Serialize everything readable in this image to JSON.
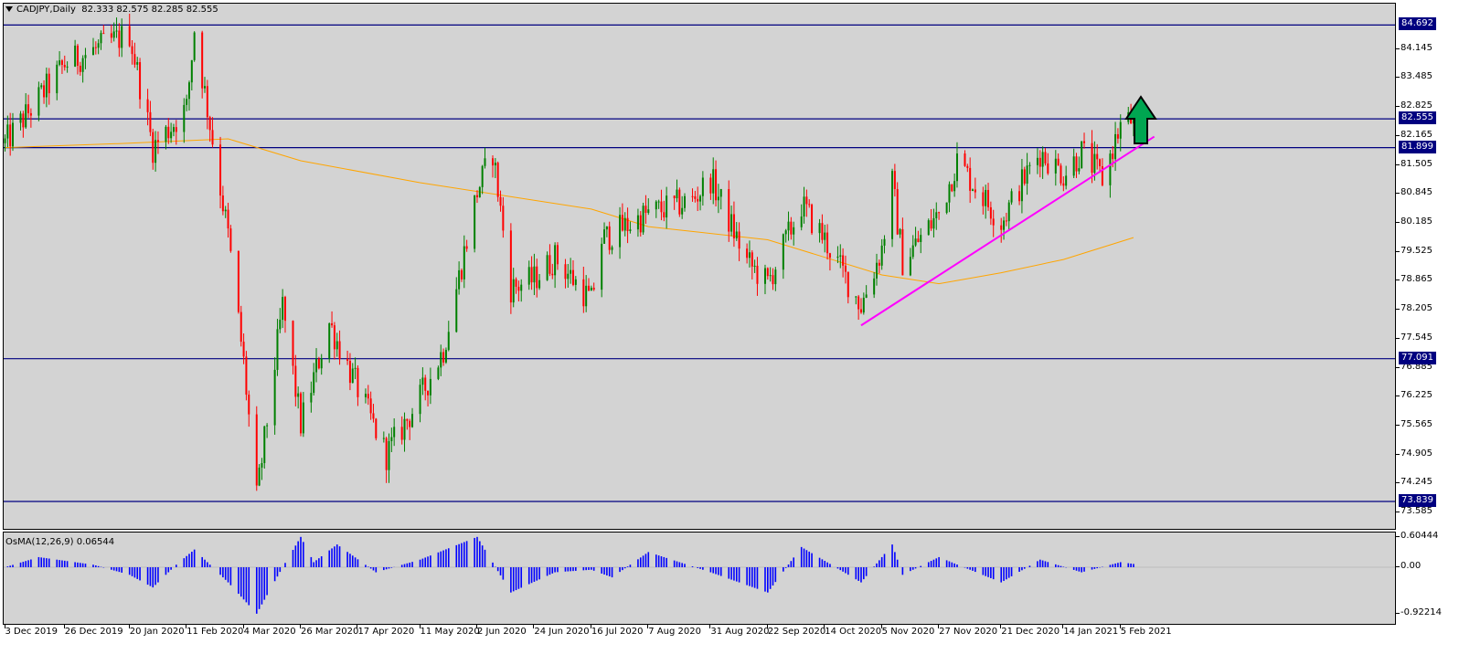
{
  "header": {
    "symbol": "CADJPY",
    "timeframe": "Daily",
    "ohlc": "82.333 82.575 82.285 82.555"
  },
  "oscillator": {
    "name": "OsMA(12,26,9)",
    "value": "0.06544",
    "axis_labels": [
      "0.60444",
      "0.00",
      "-0.92214"
    ],
    "color": "#0000ff"
  },
  "price_axis": {
    "labels": [
      "84.145",
      "83.485",
      "82.825",
      "82.165",
      "81.505",
      "80.845",
      "80.185",
      "79.525",
      "78.865",
      "78.205",
      "77.545",
      "76.885",
      "76.225",
      "75.565",
      "74.905",
      "74.245",
      "73.585"
    ],
    "levels": [
      "84.692",
      "82.555",
      "81.899",
      "77.091",
      "73.839"
    ]
  },
  "time_axis": {
    "labels": [
      "3 Dec 2019",
      "26 Dec 2019",
      "20 Jan 2020",
      "11 Feb 2020",
      "4 Mar 2020",
      "26 Mar 2020",
      "17 Apr 2020",
      "11 May 2020",
      "2 Jun 2020",
      "24 Jun 2020",
      "16 Jul 2020",
      "7 Aug 2020",
      "31 Aug 2020",
      "22 Sep 2020",
      "14 Oct 2020",
      "5 Nov 2020",
      "27 Nov 2020",
      "21 Dec 2020",
      "14 Jan 2021",
      "5 Feb 2021"
    ]
  },
  "colors": {
    "background": "#d3d3d3",
    "bull_candle": "#008000",
    "bear_candle": "#ff0000",
    "level_line": "#000080",
    "moving_average": "#ffa500",
    "trendline": "#ff00ff",
    "up_arrow": "#00a651"
  },
  "icons": {
    "menu": "triangle-down-icon",
    "signal": "up-arrow-icon"
  },
  "chart_data": {
    "type": "candlestick",
    "symbol": "CADJPY",
    "timeframe": "Daily",
    "ylim": [
      73.585,
      84.75
    ],
    "horizontal_levels": [
      84.692,
      82.555,
      81.899,
      77.091,
      73.839
    ],
    "close_path": [
      {
        "date": "3 Dec 2019",
        "close": 82.0
      },
      {
        "date": "26 Dec 2019",
        "close": 83.8
      },
      {
        "date": "20 Jan 2020",
        "close": 84.5
      },
      {
        "date": "29 Jan 2020",
        "close": 81.9
      },
      {
        "date": "11 Feb 2020",
        "close": 82.8
      },
      {
        "date": "14 Feb 2020",
        "close": 84.6
      },
      {
        "date": "27 Feb 2020",
        "close": 79.9
      },
      {
        "date": "4 Mar 2020",
        "close": 77.0
      },
      {
        "date": "9 Mar 2020",
        "close": 73.9
      },
      {
        "date": "19 Mar 2020",
        "close": 78.3
      },
      {
        "date": "26 Mar 2020",
        "close": 75.6
      },
      {
        "date": "6 Apr 2020",
        "close": 77.9
      },
      {
        "date": "17 Apr 2020",
        "close": 76.4
      },
      {
        "date": "28 Apr 2020",
        "close": 74.9
      },
      {
        "date": "11 May 2020",
        "close": 76.2
      },
      {
        "date": "20 May 2020",
        "close": 77.3
      },
      {
        "date": "2 Jun 2020",
        "close": 80.9
      },
      {
        "date": "8 Jun 2020",
        "close": 81.8
      },
      {
        "date": "15 Jun 2020",
        "close": 78.7
      },
      {
        "date": "24 Jun 2020",
        "close": 78.9
      },
      {
        "date": "2 Jul 2020",
        "close": 79.4
      },
      {
        "date": "16 Jul 2020",
        "close": 78.4
      },
      {
        "date": "20 Jul 2020",
        "close": 79.8
      },
      {
        "date": "7 Aug 2020",
        "close": 80.4
      },
      {
        "date": "24 Aug 2020",
        "close": 80.7
      },
      {
        "date": "31 Aug 2020",
        "close": 81.2
      },
      {
        "date": "14 Sep 2020",
        "close": 79.3
      },
      {
        "date": "22 Sep 2020",
        "close": 78.8
      },
      {
        "date": "5 Oct 2020",
        "close": 80.6
      },
      {
        "date": "14 Oct 2020",
        "close": 79.8
      },
      {
        "date": "28 Oct 2020",
        "close": 78.3
      },
      {
        "date": "5 Nov 2020",
        "close": 79.6
      },
      {
        "date": "9 Nov 2020",
        "close": 81.1
      },
      {
        "date": "13 Nov 2020",
        "close": 79.3
      },
      {
        "date": "27 Nov 2020",
        "close": 80.4
      },
      {
        "date": "4 Dec 2020",
        "close": 81.6
      },
      {
        "date": "21 Dec 2020",
        "close": 80.2
      },
      {
        "date": "28 Dec 2020",
        "close": 81.0
      },
      {
        "date": "5 Jan 2021",
        "close": 81.8
      },
      {
        "date": "14 Jan 2021",
        "close": 81.3
      },
      {
        "date": "21 Jan 2021",
        "close": 81.8
      },
      {
        "date": "29 Jan 2021",
        "close": 81.2
      },
      {
        "date": "5 Feb 2021",
        "close": 82.4
      },
      {
        "date": "10 Feb 2021",
        "close": 82.555
      }
    ],
    "moving_average": [
      {
        "date": "3 Dec 2019",
        "value": 81.9
      },
      {
        "date": "20 Jan 2020",
        "value": 82.0
      },
      {
        "date": "27 Feb 2020",
        "value": 82.1
      },
      {
        "date": "26 Mar 2020",
        "value": 81.6
      },
      {
        "date": "11 May 2020",
        "value": 81.1
      },
      {
        "date": "2 Jun 2020",
        "value": 80.9
      },
      {
        "date": "16 Jul 2020",
        "value": 80.5
      },
      {
        "date": "7 Aug 2020",
        "value": 80.1
      },
      {
        "date": "22 Sep 2020",
        "value": 79.8
      },
      {
        "date": "14 Oct 2020",
        "value": 79.4
      },
      {
        "date": "5 Nov 2020",
        "value": 79.0
      },
      {
        "date": "27 Nov 2020",
        "value": 78.8
      },
      {
        "date": "21 Dec 2020",
        "value": 79.05
      },
      {
        "date": "14 Jan 2021",
        "value": 79.35
      },
      {
        "date": "10 Feb 2021",
        "value": 79.85
      }
    ],
    "trendline": [
      {
        "date": "28 Oct 2020",
        "value": 77.85
      },
      {
        "date": "18 Feb 2021",
        "value": 82.15
      }
    ],
    "osma_path": [
      {
        "date": "3 Dec 2019",
        "value": 0.0
      },
      {
        "date": "16 Dec 2019",
        "value": 0.2
      },
      {
        "date": "6 Jan 2020",
        "value": 0.05
      },
      {
        "date": "20 Jan 2020",
        "value": -0.15
      },
      {
        "date": "29 Jan 2020",
        "value": -0.4
      },
      {
        "date": "7 Feb 2020",
        "value": 0.05
      },
      {
        "date": "14 Feb 2020",
        "value": 0.35
      },
      {
        "date": "27 Feb 2020",
        "value": -0.3
      },
      {
        "date": "9 Mar 2020",
        "value": -0.92
      },
      {
        "date": "19 Mar 2020",
        "value": 0.0
      },
      {
        "date": "26 Mar 2020",
        "value": 0.6
      },
      {
        "date": "31 Mar 2020",
        "value": 0.1
      },
      {
        "date": "9 Apr 2020",
        "value": 0.45
      },
      {
        "date": "24 Apr 2020",
        "value": -0.1
      },
      {
        "date": "11 May 2020",
        "value": 0.15
      },
      {
        "date": "2 Jun 2020",
        "value": 0.6
      },
      {
        "date": "15 Jun 2020",
        "value": -0.5
      },
      {
        "date": "2 Jul 2020",
        "value": -0.1
      },
      {
        "date": "16 Jul 2020",
        "value": -0.05
      },
      {
        "date": "24 Jul 2020",
        "value": -0.2
      },
      {
        "date": "7 Aug 2020",
        "value": 0.3
      },
      {
        "date": "31 Aug 2020",
        "value": -0.1
      },
      {
        "date": "22 Sep 2020",
        "value": -0.5
      },
      {
        "date": "5 Oct 2020",
        "value": 0.4
      },
      {
        "date": "28 Oct 2020",
        "value": -0.3
      },
      {
        "date": "9 Nov 2020",
        "value": 0.45
      },
      {
        "date": "13 Nov 2020",
        "value": -0.15
      },
      {
        "date": "27 Nov 2020",
        "value": 0.2
      },
      {
        "date": "21 Dec 2020",
        "value": -0.3
      },
      {
        "date": "5 Jan 2021",
        "value": 0.15
      },
      {
        "date": "21 Jan 2021",
        "value": -0.1
      },
      {
        "date": "5 Feb 2021",
        "value": 0.1
      },
      {
        "date": "10 Feb 2021",
        "value": 0.06544
      }
    ]
  }
}
